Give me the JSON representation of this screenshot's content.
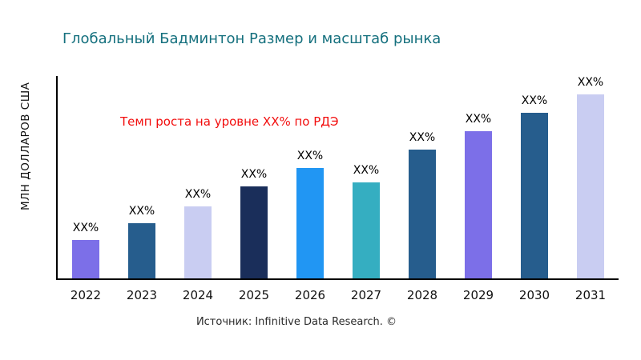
{
  "title": "Глобальный Бадминтон Размер и масштаб рынка",
  "annotation": "Темп роста на уровне XX% по РДЭ",
  "y_axis_label": "МЛН ДОЛЛАРОВ США",
  "source": "Источник: Infinitive Data Research. ©",
  "colors": {
    "title": "#15707e",
    "annotation": "#f20d0d",
    "axis": "#000000",
    "background": "#ffffff"
  },
  "chart_data": {
    "type": "bar",
    "title": "Глобальный Бадминтон Размер и масштаб рынка",
    "xlabel": "",
    "ylabel": "МЛН ДОЛЛАРОВ США",
    "categories": [
      "2022",
      "2023",
      "2024",
      "2025",
      "2026",
      "2027",
      "2028",
      "2029",
      "2030",
      "2031"
    ],
    "values": [
      21,
      30,
      39,
      50,
      60,
      52,
      70,
      80,
      90,
      100
    ],
    "bar_labels": [
      "XX%",
      "XX%",
      "XX%",
      "XX%",
      "XX%",
      "XX%",
      "XX%",
      "XX%",
      "XX%",
      "XX%"
    ],
    "bar_colors": [
      "#7c6fe8",
      "#265d8d",
      "#c9cdf2",
      "#1a2e5a",
      "#2196f3",
      "#35aec1",
      "#265d8d",
      "#7c6fe8",
      "#265d8d",
      "#c9cdf2"
    ],
    "value_units": "relative (labels shown as XX% placeholders)",
    "ylim": [
      0,
      100
    ],
    "grid": false,
    "legend": false,
    "annotation": "Темп роста на уровне XX% по РДЭ"
  }
}
